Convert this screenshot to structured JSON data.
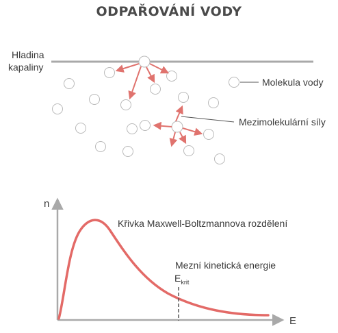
{
  "title": "ODPAŘOVÁNÍ VODY",
  "labels": {
    "surface_line1": "Hladina",
    "surface_line2": "kapaliny",
    "molecule": "Molekula vody",
    "forces": "Mezimolekulární síly",
    "curve": "Křivka Maxwell-Boltzmannova rozdělení",
    "threshold": "Mezní kinetická energie",
    "ekrit_main": "E",
    "ekrit_sub": "krit",
    "y_axis": "n",
    "x_axis": "E"
  },
  "colors": {
    "arrow": "#e0736e",
    "curve": "#e36a67",
    "gray": "#a9a9a9",
    "dashed": "#555555",
    "text": "#3a3a3a"
  }
}
